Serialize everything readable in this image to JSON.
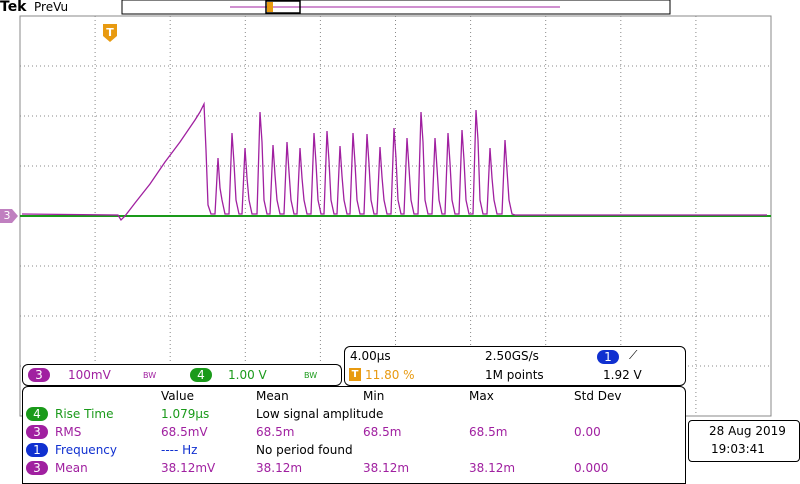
{
  "header": {
    "brand": "Tek",
    "mode": "PreVu"
  },
  "markers": {
    "trigger": "T",
    "channel": "3"
  },
  "channel_bar": {
    "ch3_badge": "3",
    "ch3_scale": "100mV",
    "ch3_bw": "BW",
    "ch4_badge": "4",
    "ch4_scale": "1.00 V",
    "ch4_bw": "BW"
  },
  "timebase": {
    "time_per_div": "4.00µs",
    "sample_rate": "2.50GS/s",
    "trigger_source": "1",
    "trigger_slope": "⟋",
    "trigger_marker": "T",
    "trigger_position": "11.80 %",
    "record_length": "1M points",
    "trigger_level": "1.92 V"
  },
  "measurements": {
    "header": [
      "Value",
      "Mean",
      "Min",
      "Max",
      "Std Dev"
    ],
    "rows": [
      [
        "4",
        "Rise Time",
        "1.079µs",
        "Low signal amplitude"
      ],
      [
        "3",
        "RMS",
        "68.5mV",
        "68.5m",
        "68.5m",
        "68.5m",
        "0.00"
      ],
      [
        "1",
        "Frequency",
        "---- Hz",
        "No period found"
      ],
      [
        "3",
        "Mean",
        "38.12mV",
        "38.12m",
        "38.12m",
        "38.12m",
        "0.000"
      ]
    ]
  },
  "datetime": {
    "date": "28 Aug 2019",
    "time": "19:03:41"
  }
}
